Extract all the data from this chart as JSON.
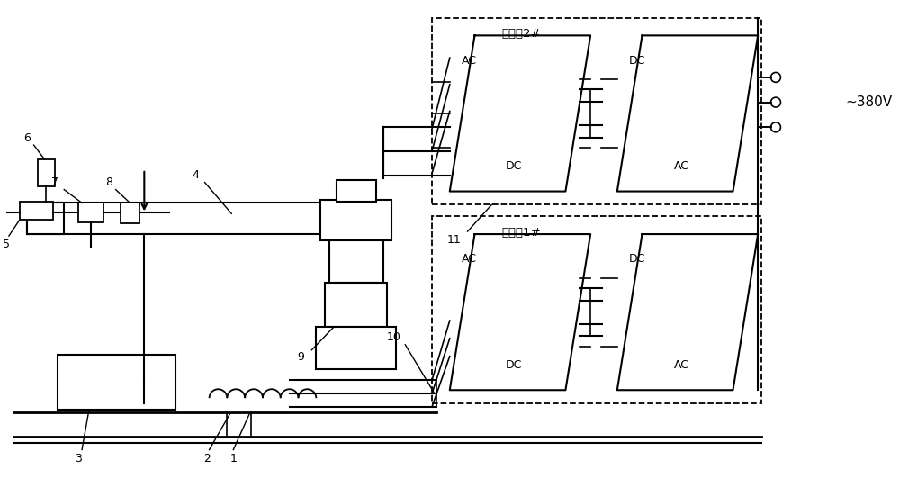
{
  "bg_color": "#ffffff",
  "line_color": "#000000",
  "text_color": "#000000",
  "fig_width": 10.0,
  "fig_height": 5.32,
  "dpi": 100,
  "converter2_label": "变流器2#",
  "converter1_label": "变流器1#",
  "voltage_label": "~380V",
  "labels": [
    "1",
    "2",
    "3",
    "4",
    "5",
    "6",
    "7",
    "8",
    "9",
    "10",
    "11"
  ],
  "ac_label": "AC",
  "dc_label": "DC"
}
